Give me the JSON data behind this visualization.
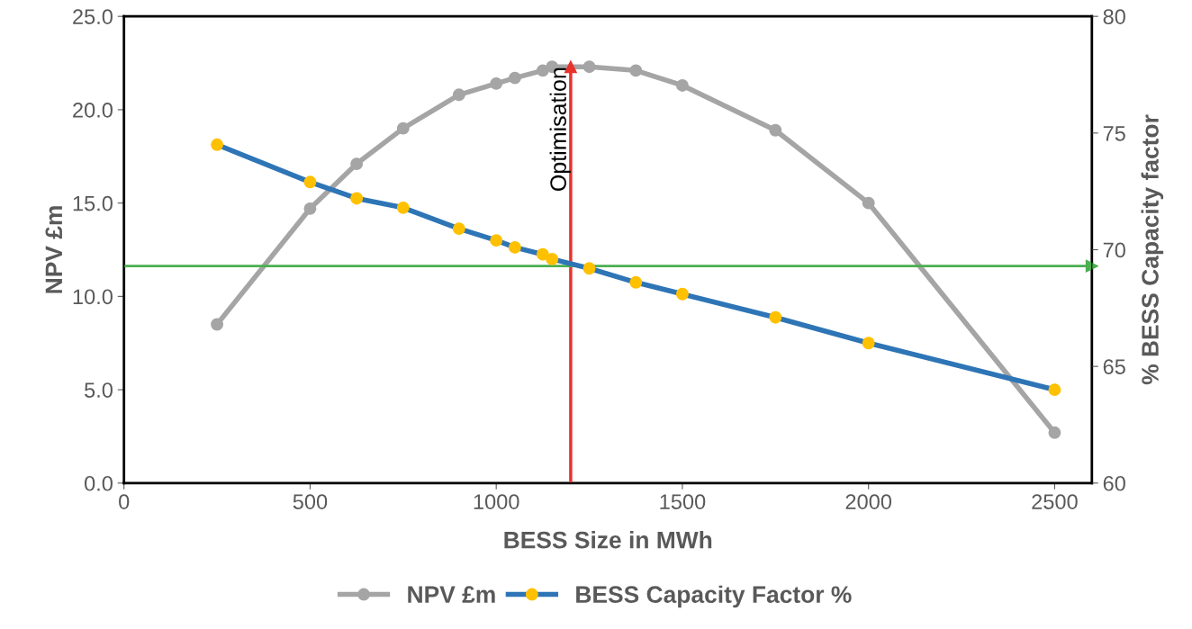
{
  "chart_data": {
    "type": "line",
    "xlabel": "BESS Size in MWh",
    "ylabel": "NPV £m",
    "y2label": "% BESS Capacity factor",
    "series": [
      {
        "name": "NPV £m",
        "color": "#a5a5a5",
        "x": [
          250,
          500,
          625,
          750,
          900,
          1000,
          1050,
          1125,
          1150,
          1250,
          1375,
          1500,
          1750,
          2000,
          2500
        ],
        "values": [
          8.5,
          14.7,
          17.1,
          19.0,
          20.8,
          21.4,
          21.7,
          22.1,
          22.3,
          22.3,
          22.1,
          21.3,
          18.9,
          15.0,
          2.7
        ]
      },
      {
        "name": "BESS Capacity Factor %",
        "color": "#2e75b6",
        "colors": [
          "#ffc000",
          "#ffc000",
          "#ffc000",
          "#ffc000",
          "#ffc000",
          "#ffc000",
          "#ffc000",
          "#ffc000",
          "#ffc000",
          "#ffc000",
          "#ffc000",
          "#ffc000",
          "#ffc000",
          "#ffc000",
          "#ffc000"
        ],
        "axis": "y2",
        "x": [
          250,
          500,
          625,
          750,
          900,
          1000,
          1050,
          1125,
          1150,
          1250,
          1375,
          1500,
          1750,
          2000,
          2500
        ],
        "values": [
          74.5,
          72.9,
          72.2,
          71.8,
          70.9,
          70.4,
          70.1,
          69.8,
          69.6,
          69.2,
          68.6,
          68.1,
          67.1,
          66.0,
          64.0
        ]
      }
    ],
    "xlim": [
      0,
      2600
    ],
    "xticks": [
      0,
      500,
      1000,
      1500,
      2000,
      2500
    ],
    "ylim": [
      0,
      25
    ],
    "yticks": [
      {
        "value": 0,
        "label": "0.0"
      },
      {
        "value": 5,
        "label": "5.0"
      },
      {
        "value": 10,
        "label": "10.0"
      },
      {
        "value": 15,
        "label": "15.0"
      },
      {
        "value": 20,
        "label": "20.0"
      },
      {
        "value": 25,
        "label": "25.0"
      }
    ],
    "y2lim": [
      60,
      80
    ],
    "y2ticks": [
      60,
      65,
      70,
      75,
      80
    ],
    "ref_lines": [
      {
        "axis": "x",
        "value": 1200,
        "label": "Optimisation",
        "color": "#e8322b"
      },
      {
        "axis": "y2",
        "value": 69.3,
        "color": "#4caf50"
      }
    ],
    "marker": "circle",
    "grid": false,
    "legend": "bottom"
  }
}
